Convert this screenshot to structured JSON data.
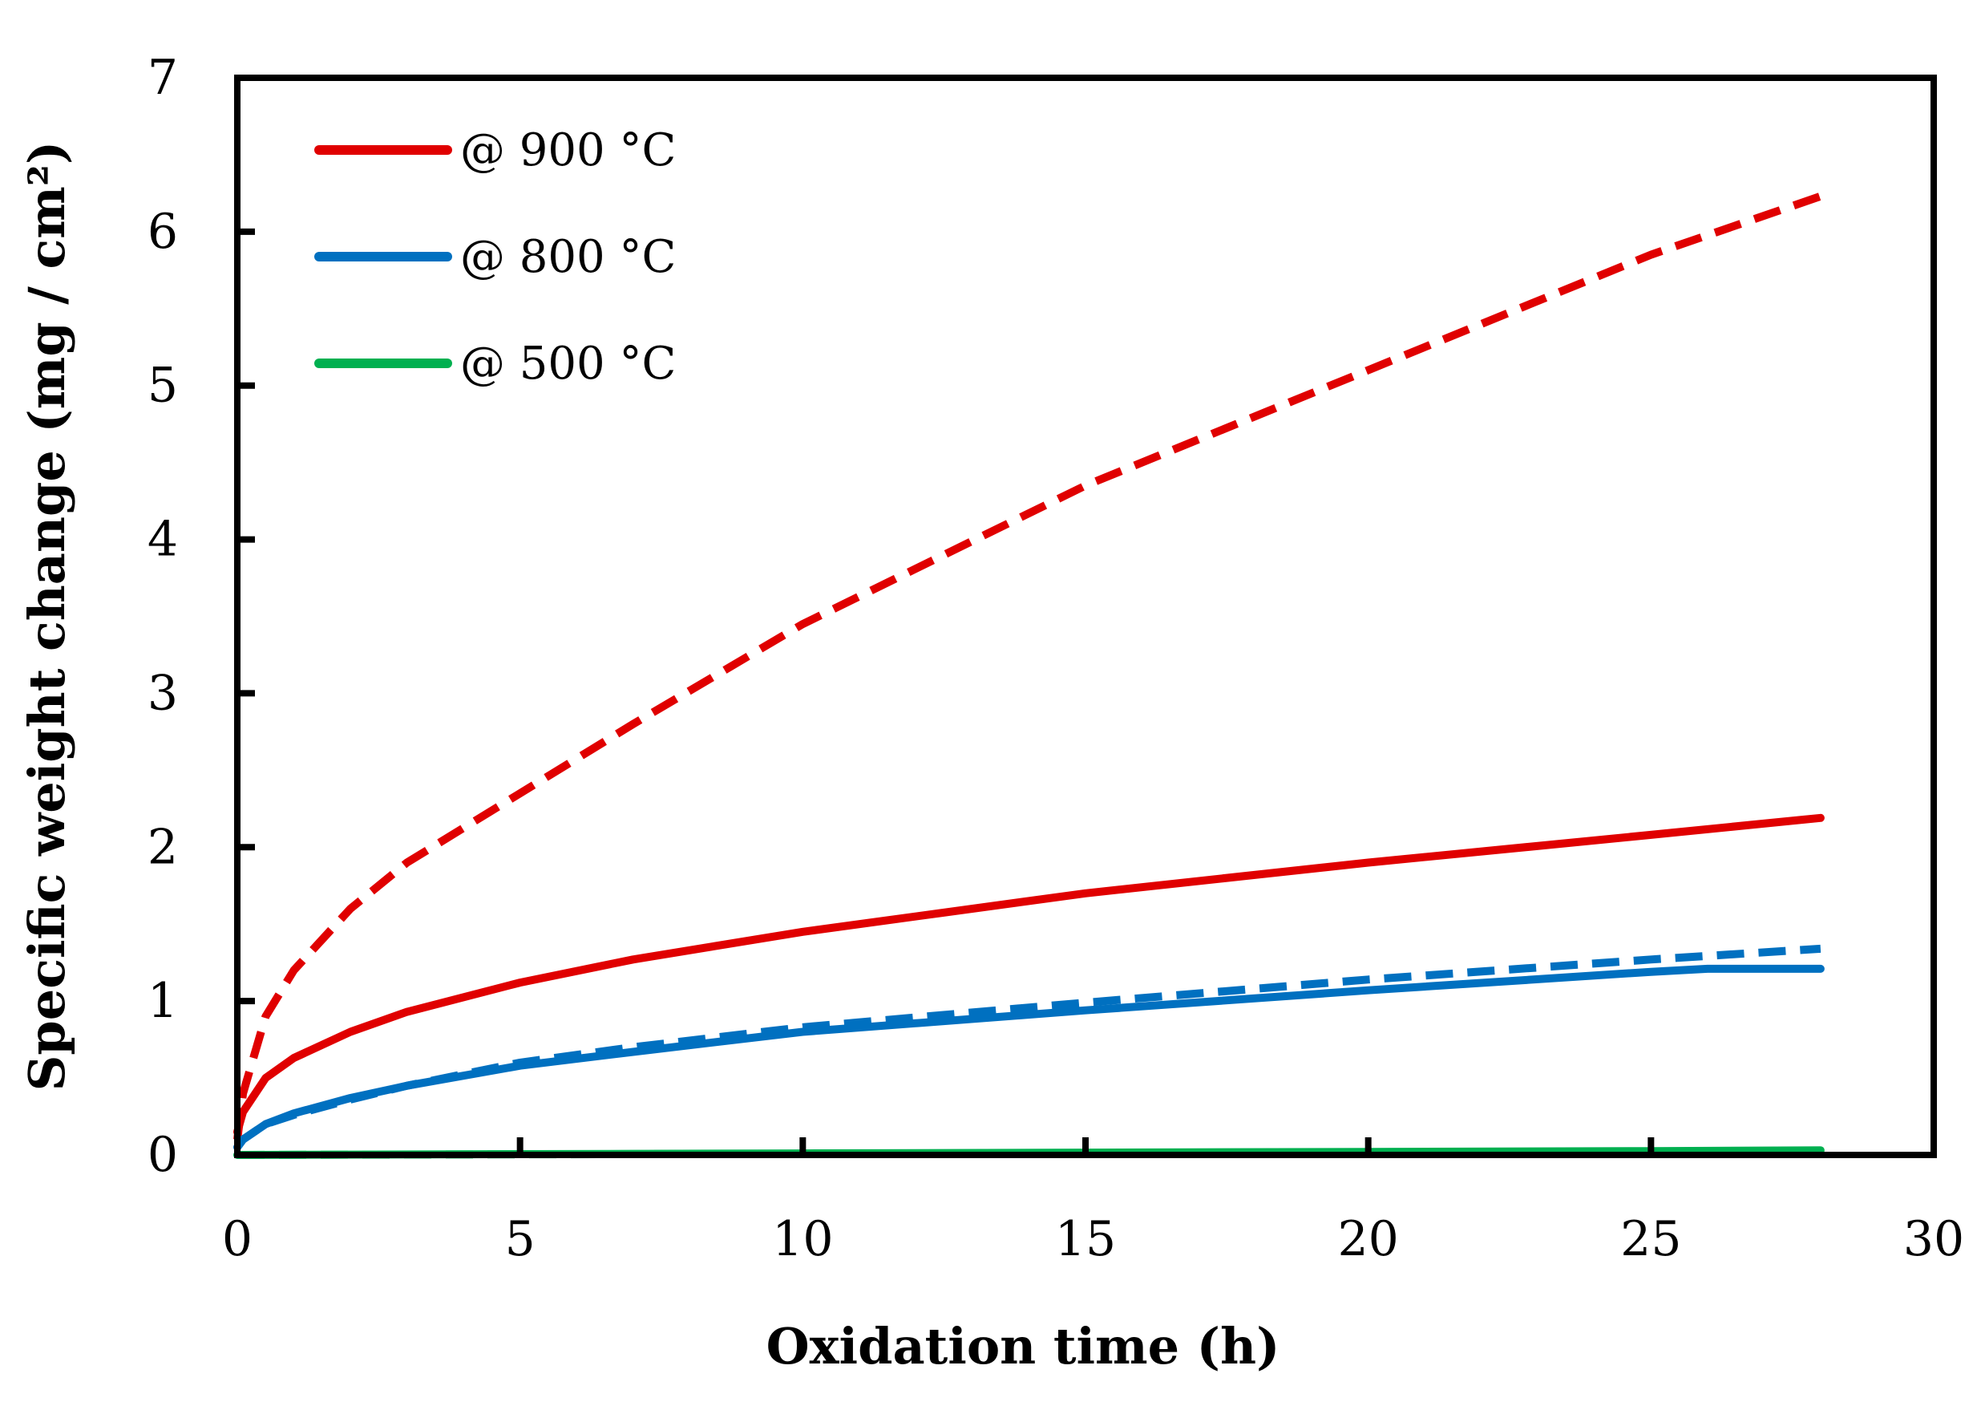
{
  "chart_data": {
    "type": "line",
    "title": "",
    "xlabel": "Oxidation time (h)",
    "ylabel": "Specific weight change (mg / cm²)",
    "xlim": [
      0,
      30
    ],
    "ylim": [
      0,
      7
    ],
    "xticks": [
      0,
      5,
      10,
      15,
      20,
      25,
      30
    ],
    "yticks": [
      0,
      1,
      2,
      3,
      4,
      5,
      6,
      7
    ],
    "grid": false,
    "legend_position": "top-left",
    "series": [
      {
        "name": "@ 900 °C",
        "color": "#e00000",
        "style": "solid",
        "in_legend": true,
        "x": [
          0,
          0.1,
          0.5,
          1,
          2,
          3,
          5,
          7,
          10,
          15,
          20,
          25,
          28
        ],
        "y": [
          0.15,
          0.28,
          0.5,
          0.63,
          0.8,
          0.93,
          1.12,
          1.27,
          1.45,
          1.7,
          1.9,
          2.08,
          2.19
        ]
      },
      {
        "name": "",
        "color": "#e00000",
        "style": "dashed",
        "in_legend": false,
        "x": [
          0,
          0.1,
          0.5,
          1,
          2,
          3,
          5,
          7,
          10,
          15,
          20,
          25,
          28
        ],
        "y": [
          0.1,
          0.4,
          0.9,
          1.2,
          1.6,
          1.9,
          2.35,
          2.8,
          3.45,
          4.35,
          5.1,
          5.85,
          6.23
        ]
      },
      {
        "name": "@ 800 °C",
        "color": "#0070c0",
        "style": "solid",
        "in_legend": true,
        "x": [
          0,
          0.1,
          0.5,
          1,
          2,
          3,
          5,
          7,
          10,
          15,
          20,
          25,
          26,
          28
        ],
        "y": [
          0.05,
          0.1,
          0.2,
          0.27,
          0.37,
          0.45,
          0.58,
          0.67,
          0.8,
          0.94,
          1.07,
          1.19,
          1.21,
          1.21
        ]
      },
      {
        "name": "",
        "color": "#0070c0",
        "style": "dashed",
        "in_legend": false,
        "x": [
          0,
          0.1,
          0.5,
          1,
          2,
          3,
          5,
          7,
          10,
          15,
          20,
          25,
          28
        ],
        "y": [
          0.05,
          0.1,
          0.2,
          0.26,
          0.36,
          0.45,
          0.6,
          0.7,
          0.83,
          0.99,
          1.14,
          1.27,
          1.34
        ]
      },
      {
        "name": "@ 500 °C",
        "color": "#00b050",
        "style": "solid",
        "in_legend": true,
        "x": [
          0,
          5,
          10,
          15,
          20,
          25,
          28
        ],
        "y": [
          0,
          0.005,
          0.01,
          0.015,
          0.02,
          0.025,
          0.03
        ]
      },
      {
        "name": "",
        "color": "#00b050",
        "style": "dashed",
        "in_legend": false,
        "x": [
          0,
          5,
          10,
          15,
          20,
          25,
          28
        ],
        "y": [
          0,
          0.004,
          0.008,
          0.012,
          0.016,
          0.02,
          0.022
        ]
      }
    ]
  }
}
